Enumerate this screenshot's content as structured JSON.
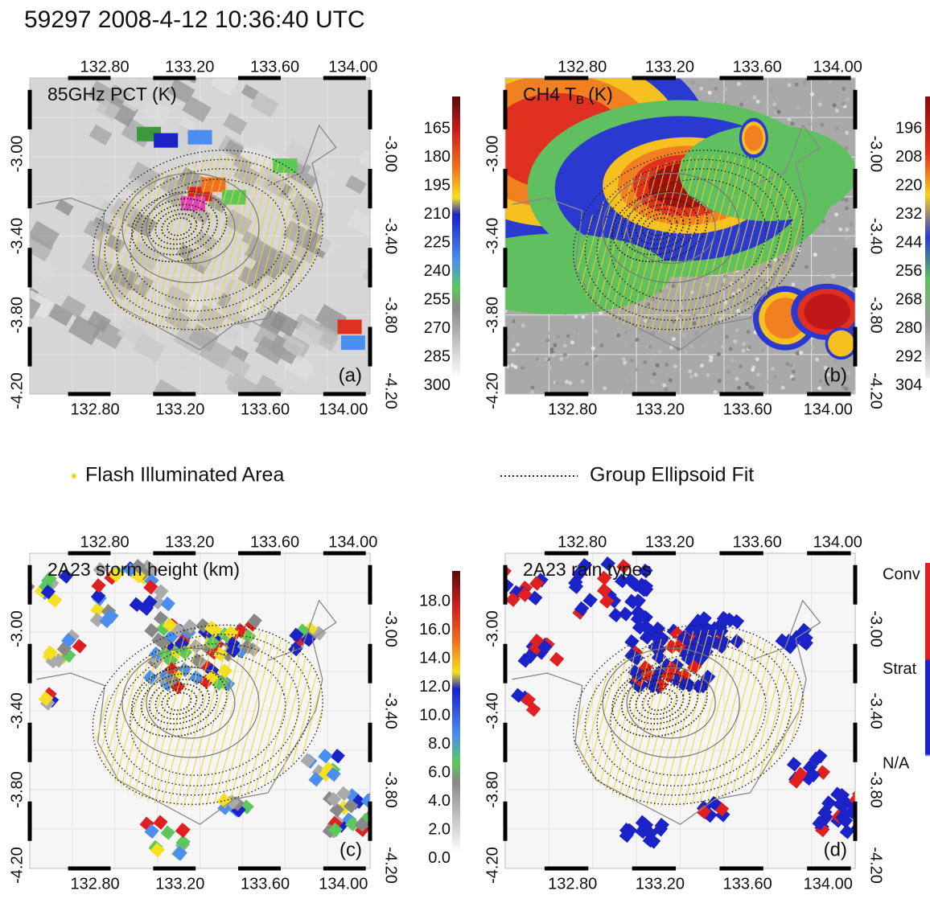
{
  "title": "59297 2008-4-12 10:36:40 UTC",
  "legend": {
    "flash": "Flash Illuminated Area",
    "ellipsoid": "Group Ellipsoid Fit"
  },
  "panels": [
    {
      "title": "85GHz PCT (K)",
      "label": "(a)",
      "lon_ticks": [
        "132.80",
        "133.20",
        "133.60",
        "134.00"
      ],
      "lat_ticks": [
        "-3.00",
        "-3.40",
        "-3.80",
        "-4.20"
      ],
      "colorbar": [
        "165",
        "180",
        "195",
        "210",
        "225",
        "240",
        "255",
        "270",
        "285",
        "300"
      ]
    },
    {
      "title": "CH4 T",
      "title_sub": "B",
      "title_unit": "(K)",
      "label": "(b)",
      "lon_ticks": [
        "132.80",
        "133.20",
        "133.60",
        "134.00"
      ],
      "lat_ticks": [
        "-3.00",
        "-3.40",
        "-3.80",
        "-4.20"
      ],
      "colorbar": [
        "196",
        "208",
        "220",
        "232",
        "244",
        "256",
        "268",
        "280",
        "292",
        "304"
      ]
    },
    {
      "title": "2A23 storm height (km)",
      "label": "(c)",
      "lon_ticks": [
        "132.80",
        "133.20",
        "133.60",
        "134.00"
      ],
      "lat_ticks": [
        "-3.00",
        "-3.40",
        "-3.80",
        "-4.20"
      ],
      "colorbar": [
        "18.0",
        "16.0",
        "14.0",
        "12.0",
        "10.0",
        "8.0",
        "6.0",
        "4.0",
        "2.0",
        "0.0"
      ]
    },
    {
      "title": "2A23 rain types",
      "label": "(d)",
      "lon_ticks": [
        "132.80",
        "133.20",
        "133.60",
        "134.00"
      ],
      "lat_ticks": [
        "-3.00",
        "-3.40",
        "-3.80",
        "-4.20"
      ],
      "colorbar": [
        "Conv",
        "Strat",
        "N/A"
      ]
    }
  ]
}
